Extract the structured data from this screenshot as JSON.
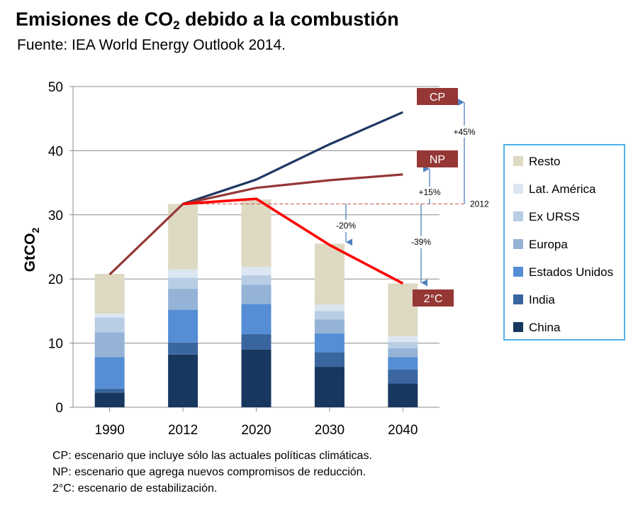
{
  "header": {
    "title_prefix": "Emisiones de CO",
    "title_sub": "2",
    "title_suffix": " debido a la combustión",
    "subtitle": "Fuente: IEA World Energy Outlook 2014."
  },
  "chart_data": {
    "type": "bar",
    "stacked": true,
    "categories": [
      "1990",
      "2012",
      "2020",
      "2030",
      "2040"
    ],
    "ylabel": "GtCO2",
    "ylim": [
      0,
      50
    ],
    "yticks": [
      0,
      10,
      20,
      30,
      40,
      50
    ],
    "grid": true,
    "legend_position": "right",
    "series": [
      {
        "name": "China",
        "color": "#17375e",
        "values": [
          2.3,
          8.2,
          9.0,
          6.3,
          3.7
        ]
      },
      {
        "name": "India",
        "color": "#3a66a0",
        "values": [
          0.6,
          1.9,
          2.4,
          2.3,
          2.2
        ]
      },
      {
        "name": "Estados Unidos",
        "color": "#558ed5",
        "values": [
          4.9,
          5.1,
          4.7,
          2.9,
          1.9
        ]
      },
      {
        "name": "Europa",
        "color": "#95b3d7",
        "values": [
          3.9,
          3.3,
          3.0,
          2.2,
          1.4
        ]
      },
      {
        "name": "Ex URSS",
        "color": "#b9cde5",
        "values": [
          2.3,
          1.7,
          1.5,
          1.3,
          1.0
        ]
      },
      {
        "name": "Lat. América",
        "color": "#dce6f2",
        "values": [
          0.6,
          1.3,
          1.3,
          1.0,
          0.9
        ]
      },
      {
        "name": "Resto",
        "color": "#ddd9c3",
        "values": [
          6.2,
          10.2,
          10.5,
          9.5,
          8.2
        ]
      }
    ],
    "scenarios": [
      {
        "name": "CP",
        "color": "#1f3864",
        "points": [
          [
            2012,
            31.7
          ],
          [
            2020,
            35.5
          ],
          [
            2030,
            41.0
          ],
          [
            2040,
            46.0
          ]
        ],
        "change_label": "+45%"
      },
      {
        "name": "NP",
        "color": "#953735",
        "points": [
          [
            1990,
            20.7
          ],
          [
            2012,
            31.7
          ],
          [
            2020,
            34.2
          ],
          [
            2030,
            35.4
          ],
          [
            2040,
            36.3
          ]
        ],
        "change_label": "+15%"
      },
      {
        "name": "2°C",
        "color": "#ff0000",
        "points": [
          [
            2012,
            31.7
          ],
          [
            2020,
            32.5
          ],
          [
            2030,
            25.3
          ],
          [
            2040,
            19.3
          ]
        ],
        "change_label": "-39%"
      }
    ],
    "reference_line": {
      "value": 31.7,
      "label": "2012"
    },
    "annotation_2030": "-20%",
    "badge_color": "#953735"
  },
  "notes": [
    "CP: escenario que incluye sólo las actuales políticas climáticas.",
    "NP: escenario que agrega nuevos compromisos de reducción.",
    "2°C: escenario de estabilización."
  ]
}
